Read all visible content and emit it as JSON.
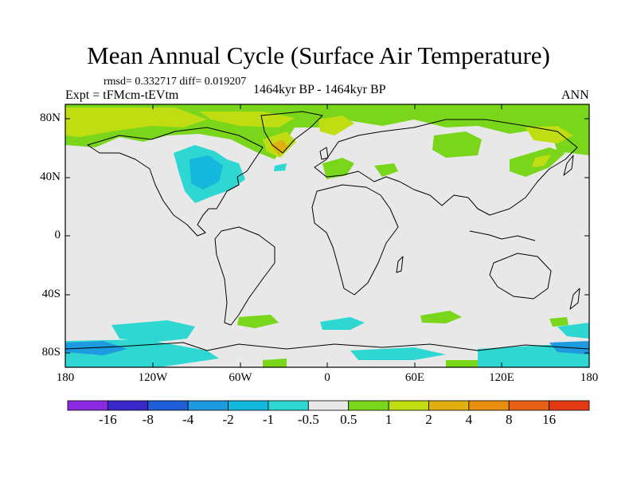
{
  "title": "Mean Annual Cycle (Surface Air Temperature)",
  "stats": "rmsd= 0.332717 diff= 0.019207",
  "experiment": "Expt = tFMcm-tEVtm",
  "period": "1464kyr BP - 1464kyr BP",
  "season": "ANN",
  "lat_ticks": [
    "80N",
    "40N",
    "0",
    "40S",
    "80S"
  ],
  "lon_ticks": [
    "180",
    "120W",
    "60W",
    "0",
    "60E",
    "120E",
    "180"
  ],
  "colorbar": {
    "labels": [
      "-16",
      "-8",
      "-4",
      "-2",
      "-1",
      "-0.5",
      "0.5",
      "1",
      "2",
      "4",
      "8",
      "16"
    ],
    "colors": [
      "#8a2be2",
      "#3b28c8",
      "#1f5ed8",
      "#1e9be0",
      "#13b8dc",
      "#2ed7d2",
      "#e8e8e8",
      "#7ad61a",
      "#c0dd12",
      "#e0b010",
      "#e98f10",
      "#e86015",
      "#e23a15"
    ]
  },
  "palette": {
    "neutral": "#e8e8e8",
    "warm1": "#7ad61a",
    "warm2": "#c0dd12",
    "warm3": "#e0b010",
    "cool1": "#2ed7d2",
    "cool2": "#13b8dc",
    "cool3": "#1e9be0"
  }
}
